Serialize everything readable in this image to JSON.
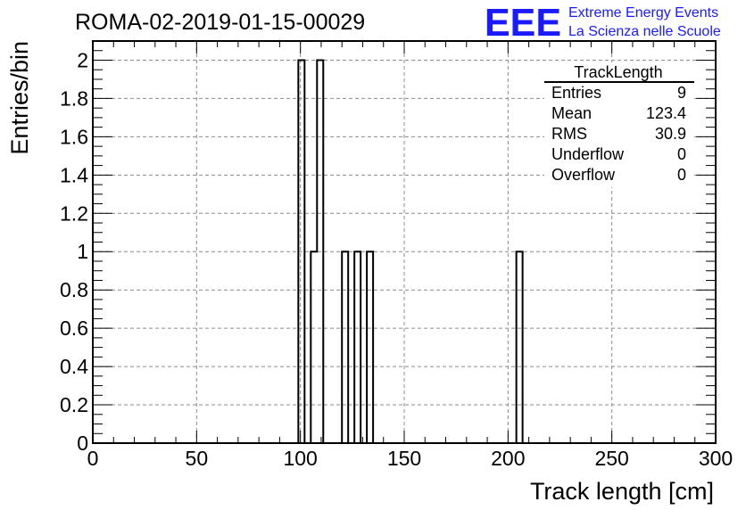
{
  "header": {
    "run_title": "ROMA-02-2019-01-15-00029",
    "logo_text": "EEE",
    "logo_line1": "Extreme Energy Events",
    "logo_line2": "La Scienza nelle Scuole",
    "logo_color": "#1a1aff"
  },
  "stats": {
    "title": "TrackLength",
    "rows": [
      {
        "label": "Entries",
        "value": "9"
      },
      {
        "label": "Mean",
        "value": "123.4"
      },
      {
        "label": "RMS",
        "value": "30.9"
      },
      {
        "label": "Underflow",
        "value": "0"
      },
      {
        "label": "Overflow",
        "value": "0"
      }
    ]
  },
  "chart_data": {
    "type": "bar",
    "xlabel": "Track length [cm]",
    "ylabel": "Entries/bin",
    "xlim": [
      0,
      300
    ],
    "ylim": [
      0,
      2.1
    ],
    "bin_width": 3,
    "grid": true,
    "xticks": [
      "0",
      "50",
      "100",
      "150",
      "200",
      "250",
      "300"
    ],
    "yticks": [
      "0",
      "0.2",
      "0.4",
      "0.6",
      "0.8",
      "1",
      "1.2",
      "1.4",
      "1.6",
      "1.8",
      "2"
    ],
    "bins": [
      {
        "x_low": 99,
        "count": 2
      },
      {
        "x_low": 105,
        "count": 1
      },
      {
        "x_low": 108,
        "count": 2
      },
      {
        "x_low": 120,
        "count": 1
      },
      {
        "x_low": 126,
        "count": 1
      },
      {
        "x_low": 132,
        "count": 1
      },
      {
        "x_low": 204,
        "count": 1
      }
    ]
  }
}
